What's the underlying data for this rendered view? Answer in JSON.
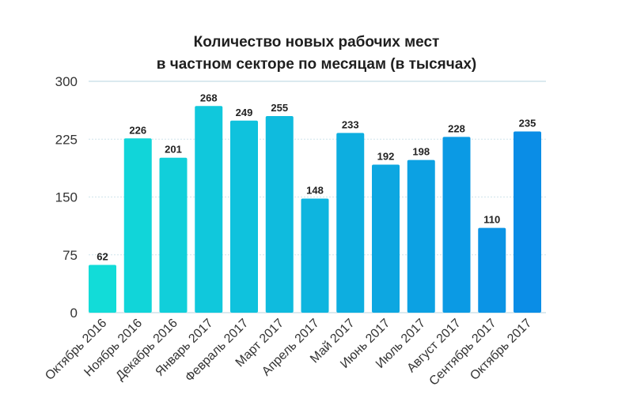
{
  "chart_data": {
    "type": "bar",
    "title": [
      "Количество новых рабочих мест",
      "в частном секторе по месяцам (в тысячах)"
    ],
    "xlabel": "",
    "ylabel": "",
    "ylim": [
      0,
      300
    ],
    "yticks": [
      0,
      75,
      150,
      225,
      300
    ],
    "grid": true,
    "categories": [
      "Октябрь 2016",
      "Ноябрь 2016",
      "Декабрь 2016",
      "Январь 2017",
      "Февраль 2017",
      "Март 2017",
      "Апрель 2017",
      "Май 2017",
      "Июнь 2017",
      "Июль 2017",
      "Август 2017",
      "Сентябрь 2017",
      "Октябрь 2017"
    ],
    "values": [
      62,
      226,
      201,
      268,
      249,
      255,
      148,
      233,
      192,
      198,
      228,
      110,
      235
    ],
    "colors": {
      "start": "#12dcd8",
      "end": "#0a8de6",
      "grid": "#cfe3ea",
      "text": "#222222"
    }
  }
}
